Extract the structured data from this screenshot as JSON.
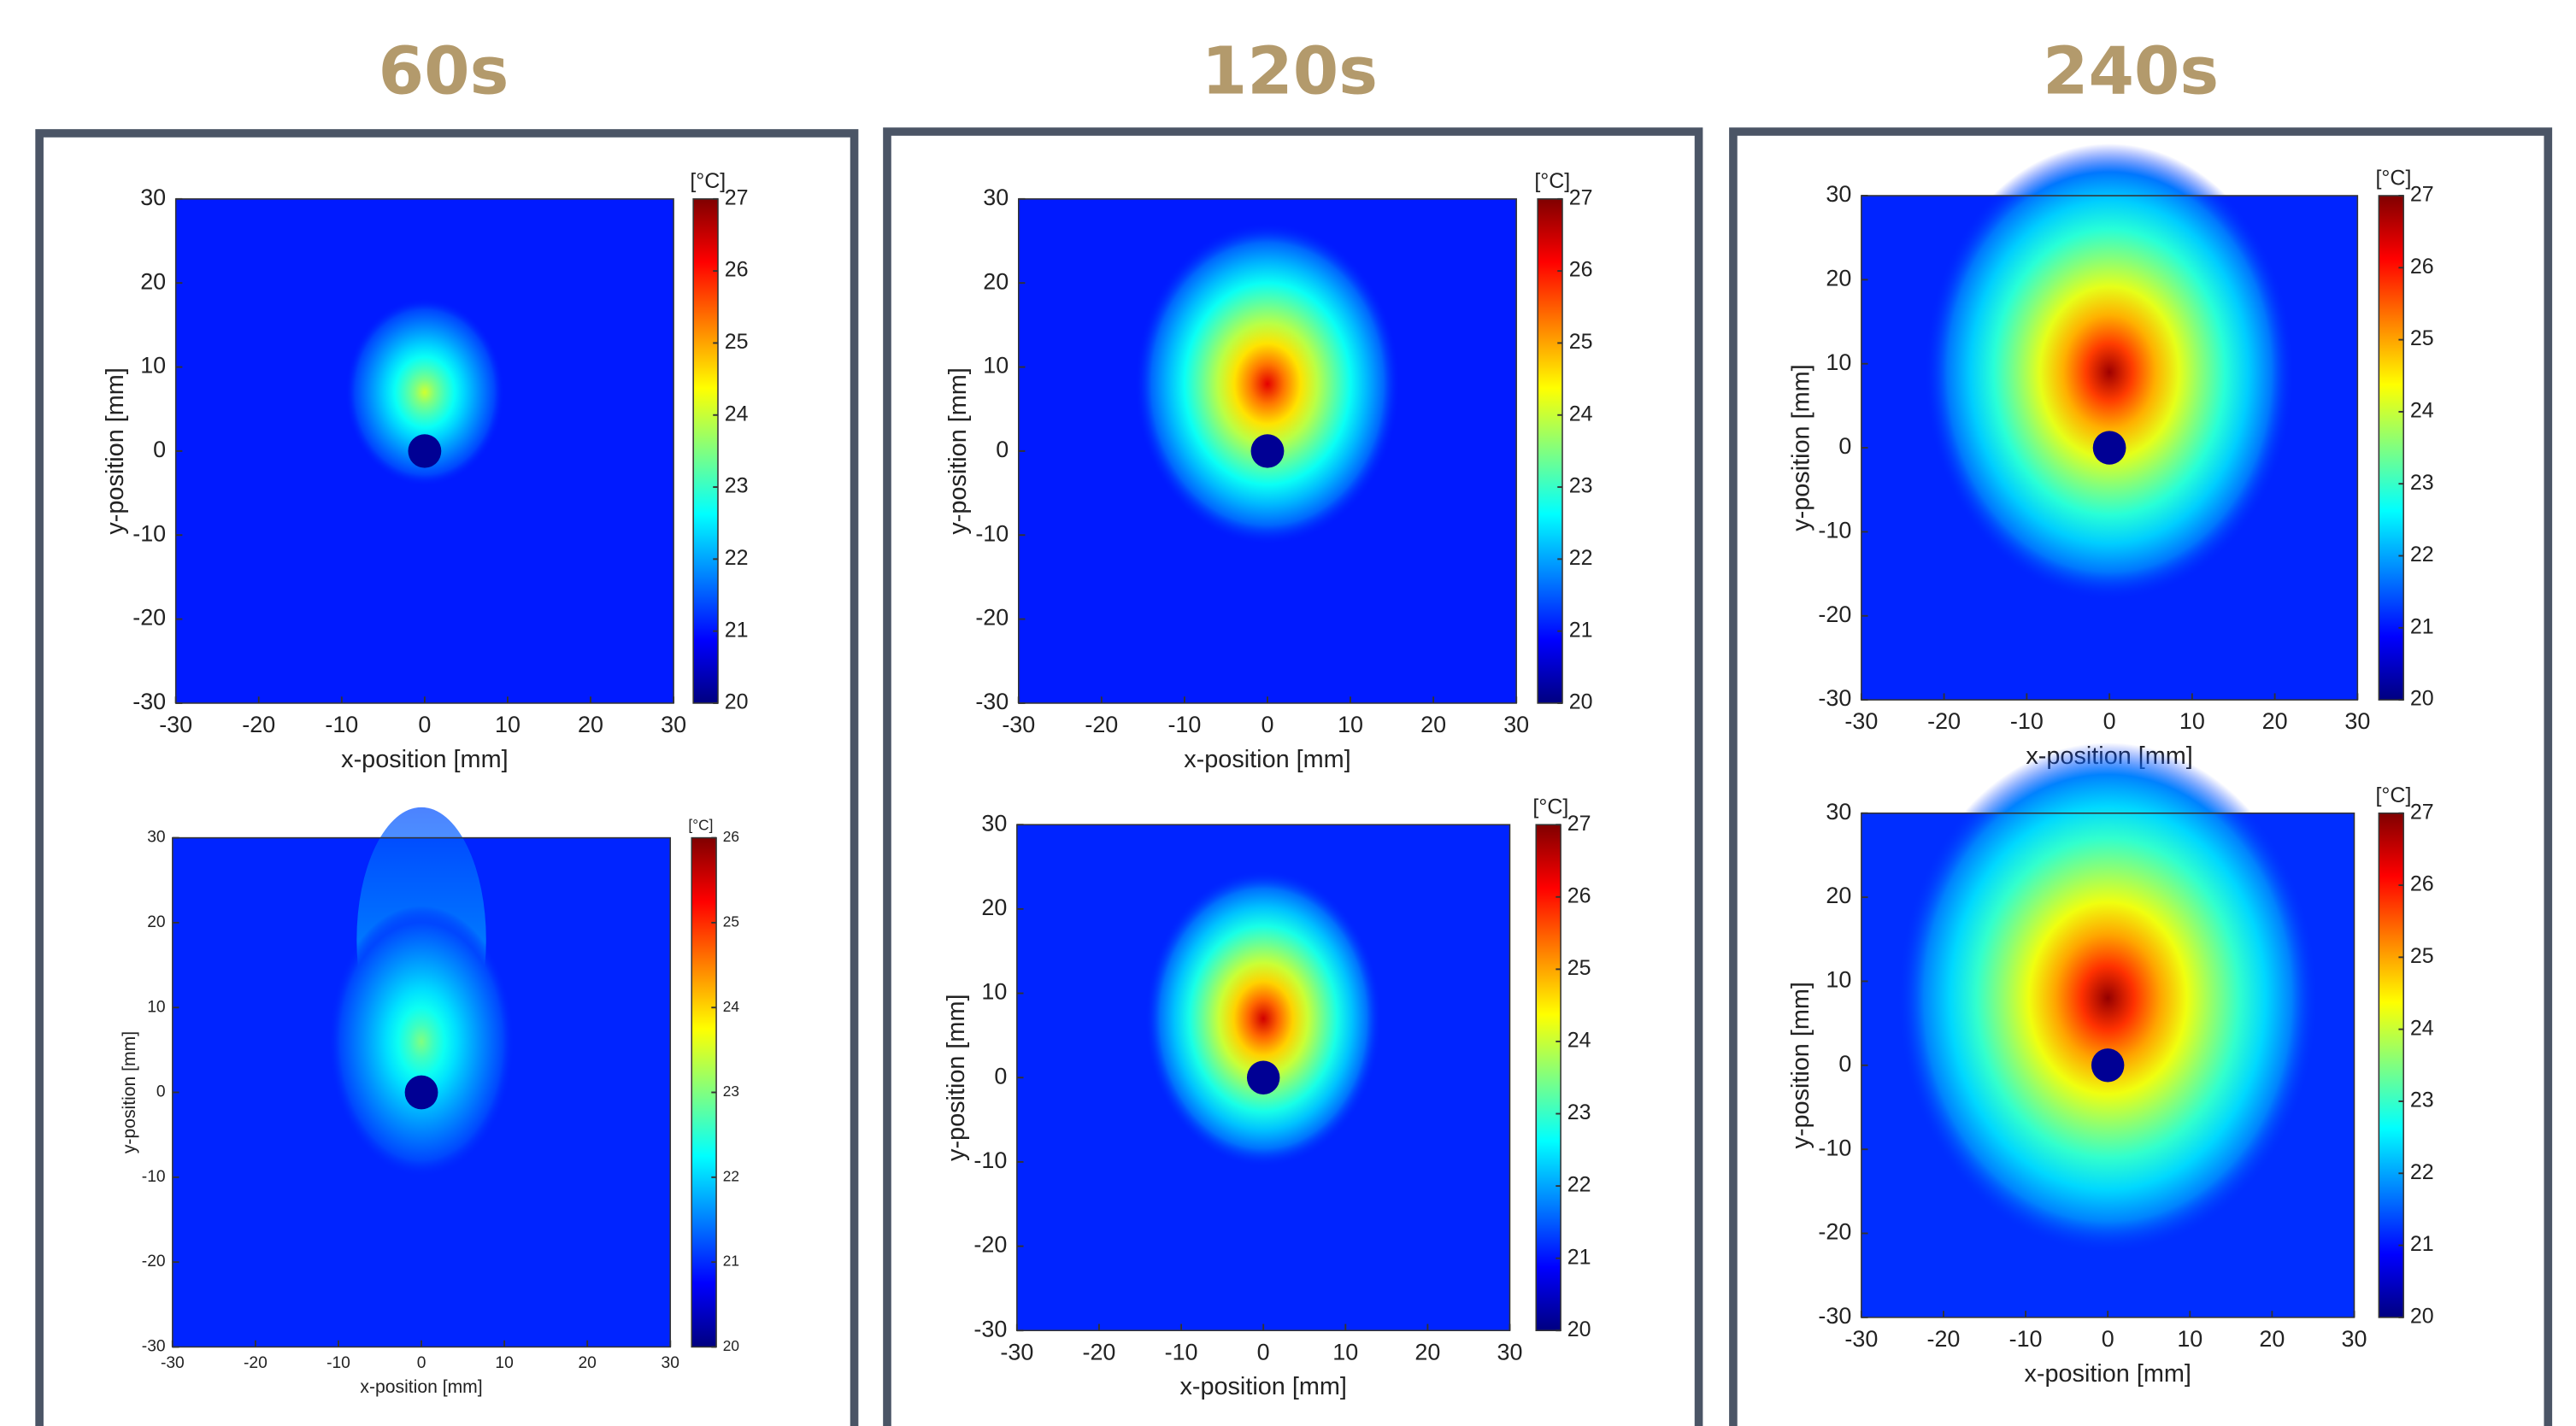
{
  "panels": [
    {
      "title": "60s",
      "plots": [
        {
          "xlabel": "x-position [mm]",
          "ylabel": "y-position [mm]",
          "xlim": [
            -30,
            30
          ],
          "ylim": [
            -30,
            30
          ],
          "xticks": [
            -30,
            -20,
            -10,
            0,
            10,
            20,
            30
          ],
          "yticks": [
            -30,
            -20,
            -10,
            0,
            10,
            20,
            30
          ],
          "colorbar": {
            "label": "[°C]",
            "lim": [
              20,
              27
            ],
            "ticks": [
              20,
              21,
              22,
              23,
              24,
              25,
              26,
              27
            ]
          }
        },
        {
          "xlabel": "x-position [mm]",
          "ylabel": "y-position [mm]",
          "xlim": [
            -30,
            30
          ],
          "ylim": [
            -30,
            30
          ],
          "xticks": [
            -30,
            -20,
            -10,
            0,
            10,
            20,
            30
          ],
          "yticks": [
            -30,
            -20,
            -10,
            0,
            10,
            20,
            30
          ],
          "colorbar": {
            "label": "[°C]",
            "lim": [
              20,
              26
            ],
            "ticks": [
              20,
              21,
              22,
              23,
              24,
              25,
              26
            ]
          }
        }
      ]
    },
    {
      "title": "120s",
      "plots": [
        {
          "xlabel": "x-position [mm]",
          "ylabel": "y-position [mm]",
          "xlim": [
            -30,
            30
          ],
          "ylim": [
            -30,
            30
          ],
          "xticks": [
            -30,
            -20,
            -10,
            0,
            10,
            20,
            30
          ],
          "yticks": [
            -30,
            -20,
            -10,
            0,
            10,
            20,
            30
          ],
          "colorbar": {
            "label": "[°C]",
            "lim": [
              20,
              27
            ],
            "ticks": [
              20,
              21,
              22,
              23,
              24,
              25,
              26,
              27
            ]
          }
        },
        {
          "xlabel": "x-position [mm]",
          "ylabel": "y-position [mm]",
          "xlim": [
            -30,
            30
          ],
          "ylim": [
            -30,
            30
          ],
          "xticks": [
            -30,
            -20,
            -10,
            0,
            10,
            20,
            30
          ],
          "yticks": [
            -30,
            -20,
            -10,
            0,
            10,
            20,
            30
          ],
          "colorbar": {
            "label": "[°C]",
            "lim": [
              20,
              27
            ],
            "ticks": [
              20,
              21,
              22,
              23,
              24,
              25,
              26,
              27
            ]
          }
        }
      ]
    },
    {
      "title": "240s",
      "plots": [
        {
          "xlabel": "x-position [mm]",
          "ylabel": "y-position [mm]",
          "xlim": [
            -30,
            30
          ],
          "ylim": [
            -30,
            30
          ],
          "xticks": [
            -30,
            -20,
            -10,
            0,
            10,
            20,
            30
          ],
          "yticks": [
            -30,
            -20,
            -10,
            0,
            10,
            20,
            30
          ],
          "colorbar": {
            "label": "[°C]",
            "lim": [
              20,
              27
            ],
            "ticks": [
              20,
              21,
              22,
              23,
              24,
              25,
              26,
              27
            ]
          }
        },
        {
          "xlabel": "x-position [mm]",
          "ylabel": "y-position [mm]",
          "xlim": [
            -30,
            30
          ],
          "ylim": [
            -30,
            30
          ],
          "xticks": [
            -30,
            -20,
            -10,
            0,
            10,
            20,
            30
          ],
          "yticks": [
            -30,
            -20,
            -10,
            0,
            10,
            20,
            30
          ],
          "colorbar": {
            "label": "[°C]",
            "lim": [
              20,
              27
            ],
            "ticks": [
              20,
              21,
              22,
              23,
              24,
              25,
              26,
              27
            ]
          }
        }
      ]
    }
  ]
}
